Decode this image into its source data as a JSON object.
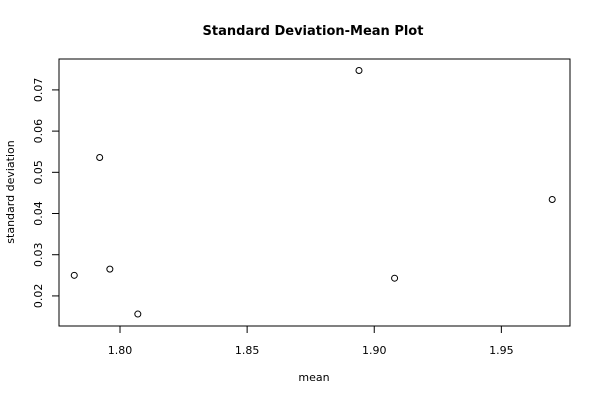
{
  "chart_data": {
    "type": "scatter",
    "title": "Standard Deviation-Mean Plot",
    "xlabel": "mean",
    "ylabel": "standard deviation",
    "xlim": [
      1.776,
      1.977
    ],
    "ylim": [
      0.0127,
      0.0775
    ],
    "xticks": [
      1.8,
      1.85,
      1.9,
      1.95
    ],
    "xtick_labels": [
      "1.80",
      "1.85",
      "1.90",
      "1.95"
    ],
    "yticks": [
      0.02,
      0.03,
      0.04,
      0.05,
      0.06,
      0.07
    ],
    "ytick_labels": [
      "0.02",
      "0.03",
      "0.04",
      "0.05",
      "0.06",
      "0.07"
    ],
    "grid": false,
    "marker": "open-circle",
    "points": [
      {
        "x": 1.782,
        "y": 0.025
      },
      {
        "x": 1.792,
        "y": 0.0536
      },
      {
        "x": 1.796,
        "y": 0.0265
      },
      {
        "x": 1.807,
        "y": 0.0156
      },
      {
        "x": 1.894,
        "y": 0.0747
      },
      {
        "x": 1.908,
        "y": 0.0243
      },
      {
        "x": 1.97,
        "y": 0.0434
      }
    ]
  }
}
